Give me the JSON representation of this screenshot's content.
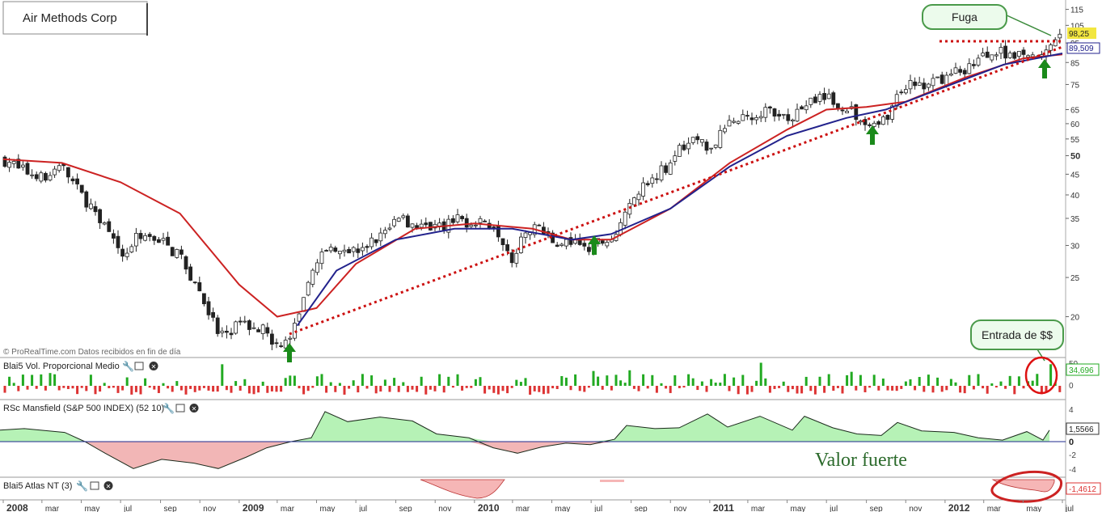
{
  "title": "Air Methods Corp",
  "watermark": "© ProRealTime.com  Datos recibidos en fin de día",
  "callouts": {
    "breakout": "Fuga",
    "money_in": "Entrada de $$",
    "strong": "Valor fuerte"
  },
  "panels": {
    "volume": {
      "label": "Blai5 Vol. Proporcional Medio",
      "value": "34,696",
      "axis": [
        "50",
        "0"
      ],
      "positive_color": "#22aa22",
      "negative_color": "#dd3333"
    },
    "mansfield": {
      "label": "RSc Mansfield (S&P 500 INDEX) (52 10)",
      "value": "1,5566",
      "axis": [
        "4",
        "2",
        "0",
        "-2",
        "-4"
      ],
      "fill_positive": "#b6f2b6",
      "fill_negative": "#f2b6b6"
    },
    "atlas": {
      "label": "Blai5 Atlas NT (3)",
      "value": "-1,4612"
    }
  },
  "price_axis": {
    "ticks": [
      "115",
      "105",
      "95",
      "85",
      "75",
      "65",
      "60",
      "55",
      "50",
      "45",
      "40",
      "35",
      "30",
      "25",
      "20"
    ],
    "current_price": "98,25",
    "ma_value": "89,509"
  },
  "time_axis": [
    "2008",
    "mar",
    "may",
    "jul",
    "sep",
    "nov",
    "2009",
    "mar",
    "may",
    "jul",
    "sep",
    "nov",
    "2010",
    "mar",
    "may",
    "jul",
    "sep",
    "nov",
    "2011",
    "mar",
    "may",
    "jul",
    "sep",
    "nov",
    "2012",
    "mar",
    "may",
    "jul"
  ],
  "colors": {
    "up": "#ffffff",
    "down": "#222222",
    "ma_red": "#cc2222",
    "ma_blue": "#22228c",
    "trendline": "#cc1111",
    "arrow": "#1a8a1a"
  },
  "chart_data": {
    "type": "candlestick",
    "title": "Air Methods Corp",
    "y_scale": "log",
    "ylim": [
      16,
      118
    ],
    "x_range": [
      "2008-01",
      "2012-07"
    ],
    "series": [
      {
        "name": "price_weekly_close_approx",
        "x": [
          "2008-01",
          "2008-02",
          "2008-03",
          "2008-04",
          "2008-05",
          "2008-06",
          "2008-07",
          "2008-08",
          "2008-09",
          "2008-10",
          "2008-11",
          "2008-12",
          "2009-01",
          "2009-02",
          "2009-03",
          "2009-04",
          "2009-05",
          "2009-06",
          "2009-07",
          "2009-08",
          "2009-09",
          "2009-10",
          "2009-11",
          "2009-12",
          "2010-01",
          "2010-02",
          "2010-03",
          "2010-04",
          "2010-05",
          "2010-06",
          "2010-07",
          "2010-08",
          "2010-09",
          "2010-10",
          "2010-11",
          "2010-12",
          "2011-01",
          "2011-02",
          "2011-03",
          "2011-04",
          "2011-05",
          "2011-06",
          "2011-07",
          "2011-08",
          "2011-09",
          "2011-10",
          "2011-11",
          "2011-12",
          "2012-01",
          "2012-02",
          "2012-03",
          "2012-04",
          "2012-05",
          "2012-06",
          "2012-07"
        ],
        "values": [
          49,
          46,
          44,
          47,
          40,
          35,
          28,
          32,
          31,
          28,
          23,
          18,
          19,
          19,
          17,
          19,
          28,
          30,
          29,
          31,
          35,
          34,
          33,
          35,
          34,
          34,
          28,
          34,
          31,
          30,
          30,
          31,
          40,
          44,
          48,
          56,
          52,
          60,
          63,
          65,
          62,
          67,
          70,
          66,
          59,
          62,
          75,
          74,
          78,
          82,
          88,
          90,
          90,
          88,
          98
        ]
      },
      {
        "name": "ma_red",
        "x": [
          "2008-01",
          "2008-04",
          "2008-07",
          "2008-10",
          "2009-01",
          "2009-03",
          "2009-05",
          "2009-07",
          "2009-10",
          "2010-01",
          "2010-04",
          "2010-06",
          "2010-08",
          "2010-11",
          "2011-02",
          "2011-05",
          "2011-07",
          "2011-09",
          "2011-11",
          "2012-02",
          "2012-05",
          "2012-07"
        ],
        "values": [
          49,
          48,
          43,
          36,
          24,
          20,
          21,
          27,
          33,
          34,
          33,
          31,
          31,
          37,
          48,
          58,
          65,
          66,
          68,
          78,
          87,
          89
        ]
      },
      {
        "name": "ma_blue",
        "x": [
          "2009-04",
          "2009-06",
          "2009-09",
          "2009-12",
          "2010-03",
          "2010-06",
          "2010-08",
          "2010-11",
          "2011-02",
          "2011-05",
          "2011-08",
          "2011-10",
          "2012-01",
          "2012-04",
          "2012-07"
        ],
        "values": [
          19,
          26,
          31,
          33,
          33,
          31,
          32,
          37,
          47,
          56,
          62,
          65,
          74,
          84,
          89.5
        ]
      }
    ]
  }
}
